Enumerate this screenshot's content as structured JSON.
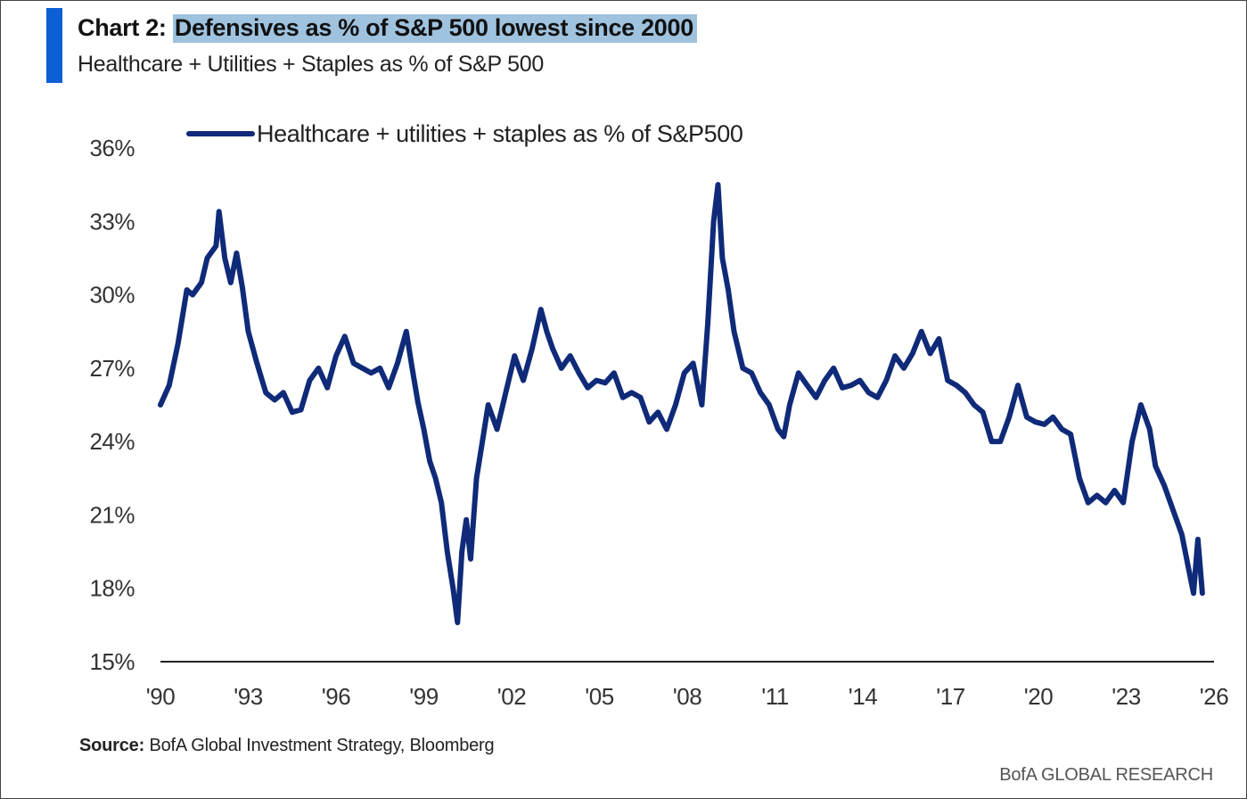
{
  "header": {
    "title_prefix": "Chart 2:",
    "title_highlight": "Defensives as % of S&P 500 lowest since 2000",
    "subtitle": "Healthcare + Utilities + Staples as % of S&P 500"
  },
  "footer": {
    "source_label": "Source:",
    "source_text": "BofA Global Investment Strategy, Bloomberg",
    "brand": "BofA GLOBAL RESEARCH"
  },
  "colors": {
    "accent": "#0d5fd6",
    "line": "#0f2a78",
    "highlight": "#9fc3df"
  },
  "chart_data": {
    "type": "line",
    "title": "Defensives as % of S&P 500 lowest since 2000",
    "subtitle": "Healthcare + Utilities + Staples as % of S&P 500",
    "xlabel": "",
    "ylabel": "",
    "xlim": [
      1990,
      2026
    ],
    "ylim": [
      15,
      36
    ],
    "y_ticks": [
      15,
      18,
      21,
      24,
      27,
      30,
      33,
      36
    ],
    "y_tick_labels": [
      "15%",
      "18%",
      "21%",
      "24%",
      "27%",
      "30%",
      "33%",
      "36%"
    ],
    "x_ticks": [
      1990,
      1993,
      1996,
      1999,
      2002,
      2005,
      2008,
      2011,
      2014,
      2017,
      2020,
      2023,
      2026
    ],
    "x_tick_labels": [
      "'90",
      "'93",
      "'96",
      "'99",
      "'02",
      "'05",
      "'08",
      "'11",
      "'14",
      "'17",
      "'20",
      "'23",
      "'26"
    ],
    "grid": false,
    "legend": "top-left",
    "series": [
      {
        "name": "Healthcare + utilities + staples as % of S&P500",
        "x": [
          1990.0,
          1990.3,
          1990.6,
          1990.9,
          1991.1,
          1991.4,
          1991.6,
          1991.9,
          1992.0,
          1992.2,
          1992.4,
          1992.6,
          1992.8,
          1993.0,
          1993.3,
          1993.6,
          1993.9,
          1994.2,
          1994.5,
          1994.8,
          1995.1,
          1995.4,
          1995.7,
          1996.0,
          1996.3,
          1996.6,
          1996.9,
          1997.2,
          1997.5,
          1997.8,
          1998.1,
          1998.4,
          1998.6,
          1998.8,
          1999.0,
          1999.2,
          1999.4,
          1999.6,
          1999.8,
          2000.0,
          2000.15,
          2000.3,
          2000.45,
          2000.6,
          2000.8,
          2001.0,
          2001.2,
          2001.5,
          2001.8,
          2002.1,
          2002.4,
          2002.7,
          2003.0,
          2003.2,
          2003.4,
          2003.7,
          2004.0,
          2004.3,
          2004.6,
          2004.9,
          2005.2,
          2005.5,
          2005.8,
          2006.1,
          2006.4,
          2006.7,
          2007.0,
          2007.3,
          2007.6,
          2007.9,
          2008.2,
          2008.5,
          2008.7,
          2008.9,
          2009.05,
          2009.2,
          2009.4,
          2009.6,
          2009.9,
          2010.2,
          2010.5,
          2010.8,
          2011.1,
          2011.3,
          2011.5,
          2011.8,
          2012.1,
          2012.4,
          2012.7,
          2013.0,
          2013.3,
          2013.6,
          2013.9,
          2014.2,
          2014.5,
          2014.8,
          2015.1,
          2015.4,
          2015.7,
          2016.0,
          2016.3,
          2016.6,
          2016.9,
          2017.2,
          2017.5,
          2017.8,
          2018.1,
          2018.4,
          2018.7,
          2019.0,
          2019.3,
          2019.6,
          2019.9,
          2020.2,
          2020.5,
          2020.8,
          2021.1,
          2021.4,
          2021.7,
          2022.0,
          2022.3,
          2022.6,
          2022.9,
          2023.2,
          2023.5,
          2023.8,
          2024.0,
          2024.3,
          2024.6,
          2024.9,
          2025.1,
          2025.3,
          2025.45,
          2025.6
        ],
        "values": [
          25.5,
          26.3,
          28.0,
          30.2,
          30.0,
          30.5,
          31.5,
          32.0,
          33.4,
          31.5,
          30.5,
          31.7,
          30.3,
          28.5,
          27.2,
          26.0,
          25.7,
          26.0,
          25.2,
          25.3,
          26.5,
          27.0,
          26.2,
          27.5,
          28.3,
          27.2,
          27.0,
          26.8,
          27.0,
          26.2,
          27.2,
          28.5,
          27.0,
          25.6,
          24.5,
          23.2,
          22.5,
          21.5,
          19.5,
          18.0,
          16.6,
          19.5,
          20.8,
          19.2,
          22.5,
          24.0,
          25.5,
          24.5,
          26.0,
          27.5,
          26.5,
          27.8,
          29.4,
          28.5,
          27.8,
          27.0,
          27.5,
          26.8,
          26.2,
          26.5,
          26.4,
          26.8,
          25.8,
          26.0,
          25.8,
          24.8,
          25.2,
          24.5,
          25.5,
          26.8,
          27.2,
          25.5,
          28.8,
          33.0,
          34.5,
          31.5,
          30.2,
          28.5,
          27.0,
          26.8,
          26.0,
          25.5,
          24.5,
          24.2,
          25.5,
          26.8,
          26.3,
          25.8,
          26.5,
          27.0,
          26.2,
          26.3,
          26.5,
          26.0,
          25.8,
          26.5,
          27.5,
          27.0,
          27.6,
          28.5,
          27.6,
          28.2,
          26.5,
          26.3,
          26.0,
          25.5,
          25.2,
          24.0,
          24.0,
          25.0,
          26.3,
          25.0,
          24.8,
          24.7,
          25.0,
          24.5,
          24.3,
          22.5,
          21.5,
          21.8,
          21.5,
          22.0,
          21.5,
          24.0,
          25.5,
          24.5,
          23.0,
          22.2,
          21.2,
          20.2,
          19.0,
          17.8,
          20.0,
          17.8
        ]
      }
    ]
  }
}
